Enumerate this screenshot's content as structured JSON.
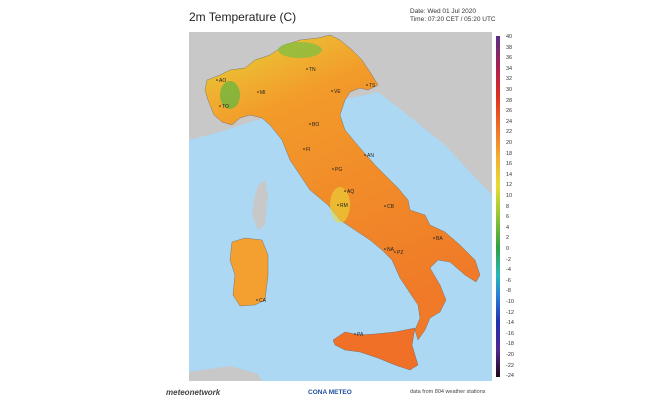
{
  "header": {
    "title": "2m Temperature (C)",
    "date": "Date: Wed 01 Jul 2020",
    "time": "Time: 07:20 CET / 05:20 UTC"
  },
  "colorbar": {
    "ticks": [
      "40",
      "38",
      "36",
      "34",
      "32",
      "30",
      "28",
      "26",
      "24",
      "22",
      "20",
      "18",
      "16",
      "14",
      "12",
      "10",
      "8",
      "6",
      "4",
      "2",
      "0",
      "-2",
      "-4",
      "-6",
      "-8",
      "-10",
      "-12",
      "-14",
      "-16",
      "-18",
      "-20",
      "-22",
      "-24"
    ]
  },
  "map": {
    "cities": [
      "AO",
      "TO",
      "MI",
      "TN",
      "VE",
      "TS",
      "BO",
      "FI",
      "AN",
      "PG",
      "AQ",
      "RM",
      "CB",
      "NA",
      "BA",
      "PZ",
      "CA",
      "PA"
    ],
    "colors": {
      "sea": "#acd8f4",
      "foreign_land": "#c8c8c8",
      "land": "#f4a030"
    }
  },
  "footer": {
    "logo_left": "meteonetwork",
    "logo_right": "CONA METEO",
    "stations": "data from 804 weather stations"
  }
}
